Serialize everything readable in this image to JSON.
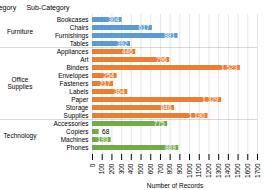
{
  "chart_data": {
    "type": "bar",
    "orientation": "horizontal",
    "xlabel": "Number of Records",
    "annotations": [
      "Category",
      "Sub-Category"
    ],
    "groups": [
      {
        "name": "Furniture",
        "color": "#5b9bd5",
        "categories": [
          "Bookcases",
          "Chairs",
          "Furnishings",
          "Tables"
        ],
        "values": [
          304,
          617,
          881,
          392
        ],
        "value_labels": [
          "304",
          "617",
          "881",
          "392"
        ]
      },
      {
        "name": "Office\nSupplies",
        "color": "#ed7d31",
        "categories": [
          "Appliances",
          "Art",
          "Binders",
          "Envelopes",
          "Fasteners",
          "Labels",
          "Paper",
          "Storage",
          "Supplies"
        ],
        "values": [
          446,
          796,
          1523,
          254,
          217,
          364,
          1329,
          846,
          1190
        ],
        "value_labels": [
          "446",
          "796",
          "1,523",
          "254",
          "217",
          "364",
          "1,329",
          "846",
          "1,190"
        ]
      },
      {
        "name": "Technology",
        "color": "#70ad47",
        "categories": [
          "Accessories",
          "Copiers",
          "Machines",
          "Phones"
        ],
        "values": [
          775,
          68,
          193,
          889
        ],
        "value_labels": [
          "775",
          "68",
          "193",
          "889"
        ]
      }
    ],
    "xlim": [
      0,
      1700
    ],
    "xticks": [
      0,
      100,
      200,
      300,
      400,
      500,
      600,
      700,
      800,
      900,
      1000,
      1100,
      1200,
      1300,
      1400,
      1500,
      1600,
      1700
    ],
    "grid": true,
    "data_labels": true
  }
}
